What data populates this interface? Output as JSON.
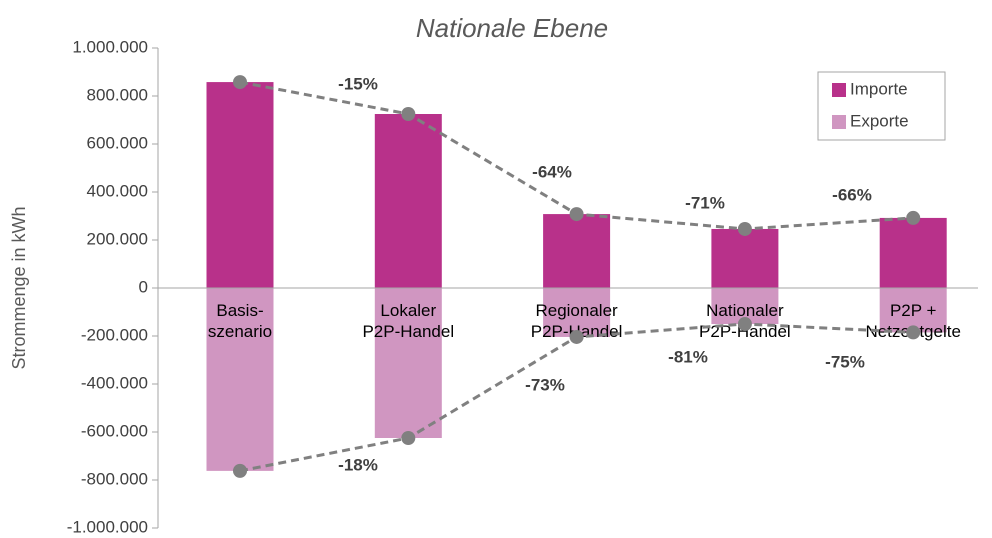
{
  "chart_data": {
    "type": "bar",
    "title": "Nationale Ebene",
    "y_label": "Strommenge in kWh",
    "categories": [
      "Basis-\nszenario",
      "Lokaler\nP2P-Handel",
      "Regionaler\nP2P-Handel",
      "Nationaler\nP2P-Handel",
      "P2P +\nNetzentgelte"
    ],
    "series": [
      {
        "name": "Importe",
        "color": "#b8318a",
        "values": [
          858000,
          725000,
          308000,
          246000,
          292000
        ],
        "change_labels": [
          null,
          "-15%",
          "-64%",
          "-71%",
          "-66%"
        ]
      },
      {
        "name": "Exporte",
        "color": "#d096c1",
        "values": [
          -762000,
          -625000,
          -204000,
          -150000,
          -185000
        ],
        "change_labels": [
          null,
          "-18%",
          "-73%",
          "-81%",
          "-75%"
        ]
      }
    ],
    "line_color": "#808080",
    "ylim": [
      -1000000,
      1000000
    ],
    "yticks": [
      {
        "value": -1000000,
        "label": "-1.000.000"
      },
      {
        "value": -800000,
        "label": "-800.000"
      },
      {
        "value": -600000,
        "label": "-600.000"
      },
      {
        "value": -400000,
        "label": "-400.000"
      },
      {
        "value": -200000,
        "label": "-200.000"
      },
      0,
      {
        "value": 200000,
        "label": "200.000"
      },
      {
        "value": 400000,
        "label": "400.000"
      },
      {
        "value": 600000,
        "label": "600.000"
      },
      {
        "value": 800000,
        "label": "800.000"
      },
      {
        "value": 1000000,
        "label": "1.000.000"
      }
    ],
    "legend": "upper right"
  }
}
